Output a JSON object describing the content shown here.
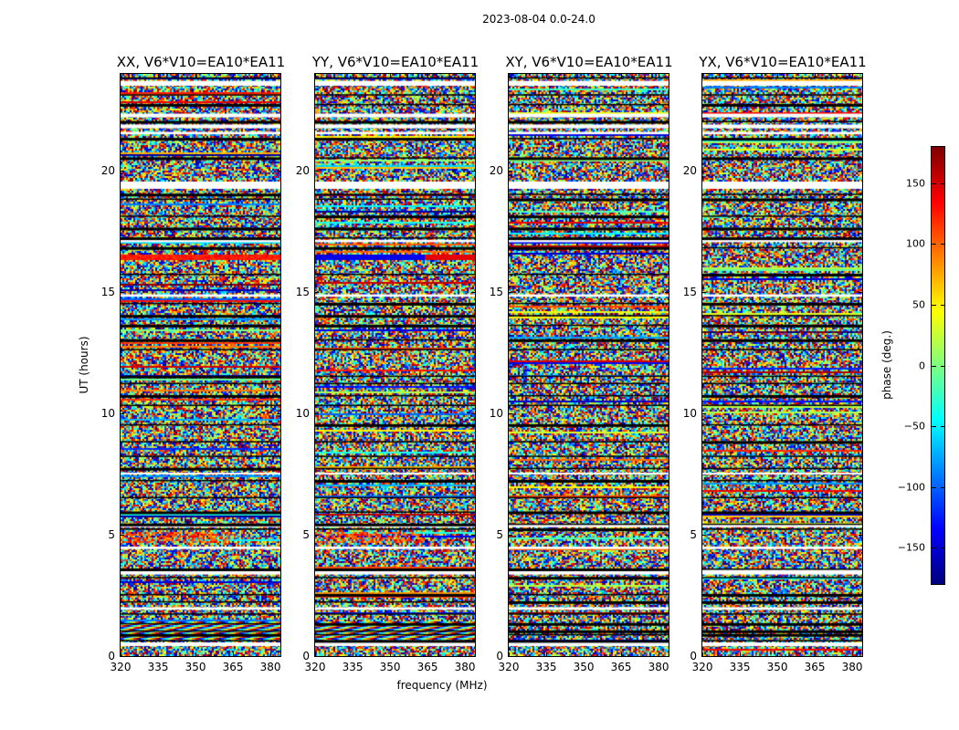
{
  "figure": {
    "title": "2023-08-04 0.0-24.0"
  },
  "chart_data": {
    "type": "heatmap",
    "panels": [
      {
        "title": "XX, V6*V10=EA10*EA11",
        "seed": 11
      },
      {
        "title": "YY, V6*V10=EA10*EA11",
        "seed": 23
      },
      {
        "title": "XY, V6*V10=EA10*EA11",
        "seed": 37
      },
      {
        "title": "YX, V6*V10=EA10*EA11",
        "seed": 53
      }
    ],
    "xlabel": "frequency (MHz)",
    "ylabel": "UT (hours)",
    "xlim": [
      320,
      384
    ],
    "ylim": [
      0,
      24
    ],
    "xticks": [
      "320",
      "335",
      "350",
      "365",
      "380"
    ],
    "xtick_values": [
      320,
      335,
      350,
      365,
      380
    ],
    "yticks": [
      "0",
      "5",
      "10",
      "15",
      "20"
    ],
    "ytick_values": [
      0,
      5,
      10,
      15,
      20
    ],
    "flagged_hours": [
      [
        23.55,
        23.75
      ],
      [
        22.25,
        22.4
      ],
      [
        21.8,
        21.95
      ],
      [
        21.55,
        21.65
      ],
      [
        19.3,
        19.6
      ],
      [
        17.1,
        17.2
      ],
      [
        14.85,
        14.95
      ],
      [
        7.55,
        7.6
      ],
      [
        5.35,
        5.45
      ],
      [
        4.45,
        4.55
      ],
      [
        3.4,
        3.6
      ],
      [
        1.95,
        2.05
      ],
      [
        0.45,
        0.6
      ]
    ],
    "scan_boundaries_hours": [
      23.9,
      23.2,
      22.8,
      22.1,
      21.4,
      20.6,
      19.1,
      18.9,
      18.2,
      17.7,
      17.3,
      16.9,
      15.8,
      14.6,
      14.1,
      13.7,
      13.1,
      12.7,
      11.6,
      11.3,
      10.8,
      10.4,
      9.6,
      8.9,
      8.3,
      7.8,
      7.3,
      6.6,
      6.0,
      5.5,
      5.3,
      3.65,
      3.3,
      2.6,
      2.3,
      1.8,
      1.4,
      1.1,
      0.95,
      0.7
    ],
    "colorbar": {
      "label": "phase (deg.)",
      "range": [
        -180,
        180
      ],
      "colormap": "jet",
      "ticks": [
        "150",
        "100",
        "50",
        "0",
        "−50",
        "−100",
        "−150"
      ],
      "tick_values": [
        150,
        100,
        50,
        0,
        -50,
        -100,
        -150
      ]
    }
  }
}
